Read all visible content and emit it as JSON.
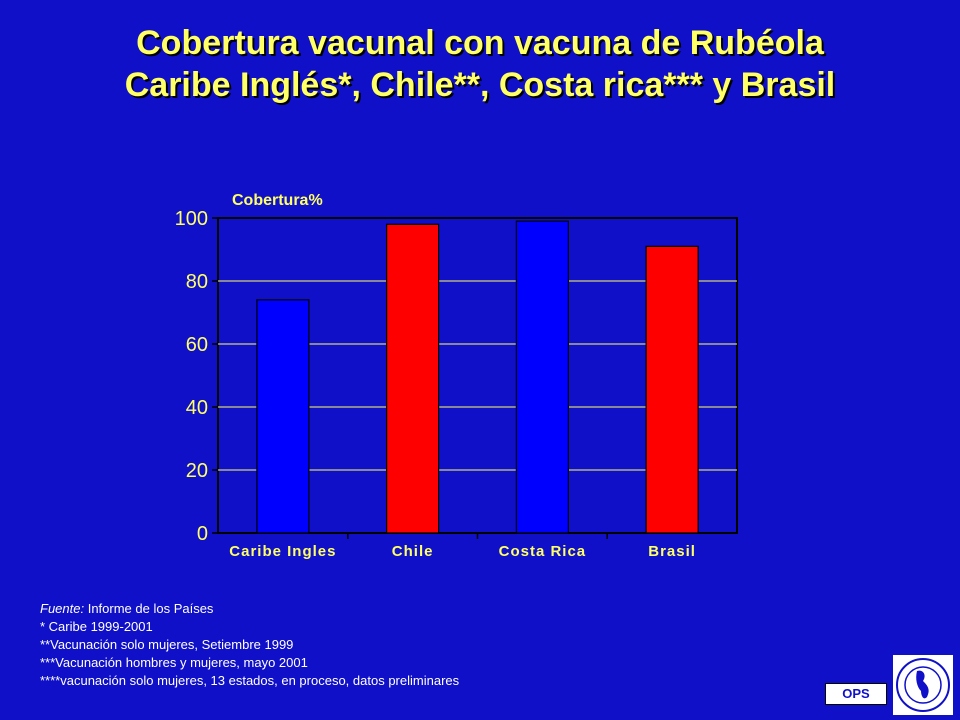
{
  "title": {
    "line1": "Cobertura vacunal con vacuna de Rubéola",
    "line2": "Caribe Inglés*, Chile**, Costa rica*** y Brasil"
  },
  "notes": {
    "fuente_label": "Fuente:",
    "fuente_text": " Informe de los Países",
    "line1": "* Caribe 1999-2001",
    "line2": "**Vacunación solo mujeres, Setiembre 1999",
    "line3": "***Vacunación hombres y mujeres, mayo 2001",
    "line4": "****vacunación solo mujeres, 13 estados, en proceso, datos preliminares"
  },
  "badge": {
    "label": "OPS"
  },
  "colors": {
    "background": "#1010c8",
    "title": "#ffff66",
    "plot_bg": "#1010c8",
    "bar_blue": "#0000ff",
    "bar_red": "#ff0000",
    "grid": "#ffff66"
  },
  "chart_data": {
    "type": "bar",
    "ylabel": "Cobertura%",
    "categories": [
      "Caribe Ingles",
      "Chile",
      "Costa Rica",
      "Brasil"
    ],
    "values": [
      74,
      98,
      99,
      91
    ],
    "bar_colors": [
      "#0000ff",
      "#ff0000",
      "#0000ff",
      "#ff0000"
    ],
    "ylim": [
      0,
      100
    ],
    "yticks": [
      0,
      20,
      40,
      60,
      80,
      100
    ],
    "grid": true
  }
}
